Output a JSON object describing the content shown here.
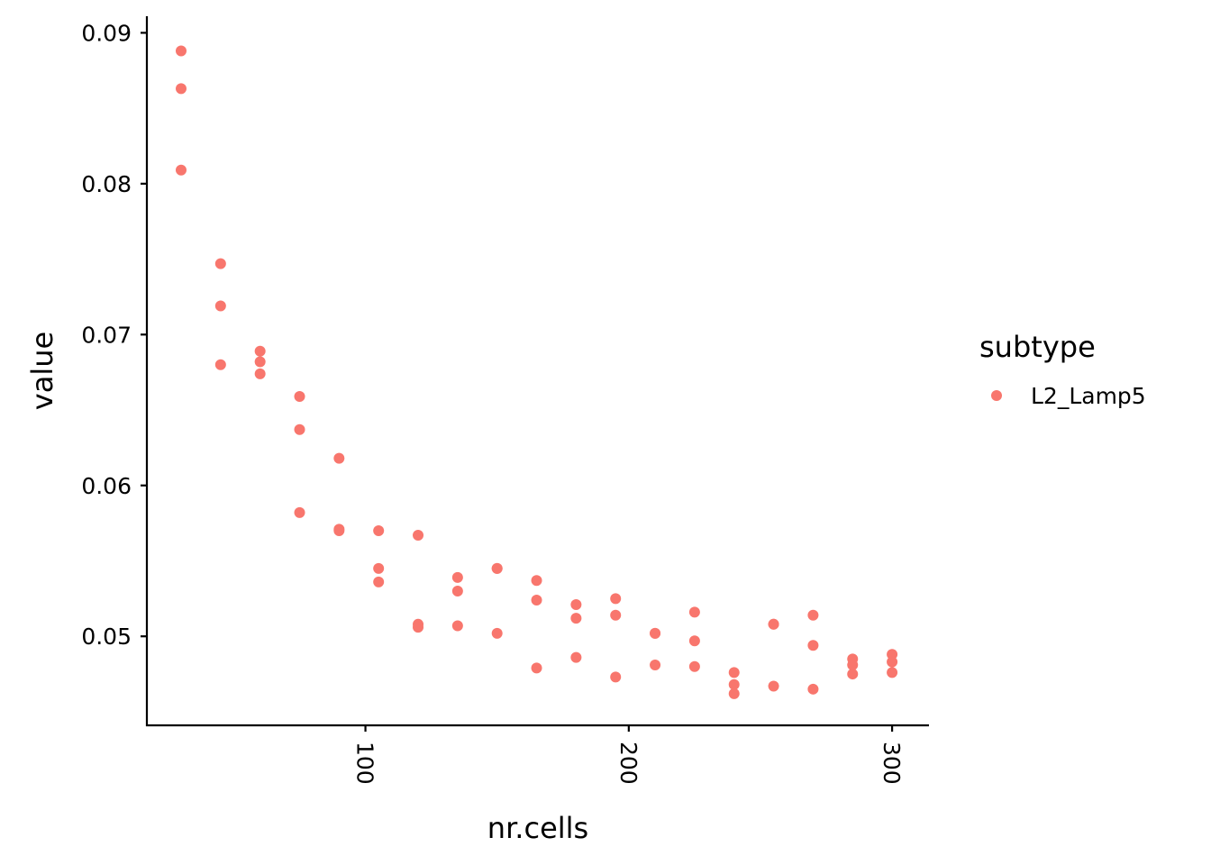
{
  "chart_data": {
    "type": "scatter",
    "title": "",
    "xlabel": "nr.cells",
    "ylabel": "value",
    "xlim": [
      17,
      314
    ],
    "ylim": [
      0.0441,
      0.0911
    ],
    "xticks": [
      100,
      200,
      300
    ],
    "xtick_labels": [
      "100",
      "200",
      "300"
    ],
    "yticks": [
      0.05,
      0.06,
      0.07,
      0.08,
      0.09
    ],
    "ytick_labels": [
      "0.05",
      "0.06",
      "0.07",
      "0.08",
      "0.09"
    ],
    "x_tick_label_rotation": "vertical",
    "grid": false,
    "legend": {
      "title": "subtype",
      "position": "right"
    },
    "series": [
      {
        "name": "L2_Lamp5",
        "color": "#F8766D",
        "points": [
          [
            30,
            0.0888
          ],
          [
            30,
            0.0863
          ],
          [
            30,
            0.0809
          ],
          [
            45,
            0.0747
          ],
          [
            45,
            0.0719
          ],
          [
            45,
            0.068
          ],
          [
            60,
            0.0689
          ],
          [
            60,
            0.0682
          ],
          [
            60,
            0.0674
          ],
          [
            75,
            0.0659
          ],
          [
            75,
            0.0637
          ],
          [
            75,
            0.0582
          ],
          [
            90,
            0.0618
          ],
          [
            90,
            0.0571
          ],
          [
            90,
            0.057
          ],
          [
            105,
            0.057
          ],
          [
            105,
            0.0545
          ],
          [
            105,
            0.0536
          ],
          [
            120,
            0.0567
          ],
          [
            120,
            0.0508
          ],
          [
            120,
            0.0506
          ],
          [
            135,
            0.0539
          ],
          [
            135,
            0.053
          ],
          [
            135,
            0.0507
          ],
          [
            150,
            0.0545
          ],
          [
            150,
            0.0545
          ],
          [
            150,
            0.0502
          ],
          [
            165,
            0.0537
          ],
          [
            165,
            0.0524
          ],
          [
            165,
            0.0479
          ],
          [
            180,
            0.0521
          ],
          [
            180,
            0.0512
          ],
          [
            180,
            0.0486
          ],
          [
            195,
            0.0525
          ],
          [
            195,
            0.0514
          ],
          [
            195,
            0.0473
          ],
          [
            210,
            0.0502
          ],
          [
            210,
            0.0502
          ],
          [
            210,
            0.0481
          ],
          [
            225,
            0.0516
          ],
          [
            225,
            0.0497
          ],
          [
            225,
            0.048
          ],
          [
            240,
            0.0476
          ],
          [
            240,
            0.0468
          ],
          [
            240,
            0.0462
          ],
          [
            255,
            0.0508
          ],
          [
            255,
            0.0508
          ],
          [
            255,
            0.0467
          ],
          [
            270,
            0.0514
          ],
          [
            270,
            0.0494
          ],
          [
            270,
            0.0465
          ],
          [
            285,
            0.0485
          ],
          [
            285,
            0.0481
          ],
          [
            285,
            0.0475
          ],
          [
            300,
            0.0488
          ],
          [
            300,
            0.0483
          ],
          [
            300,
            0.0476
          ]
        ]
      }
    ]
  }
}
